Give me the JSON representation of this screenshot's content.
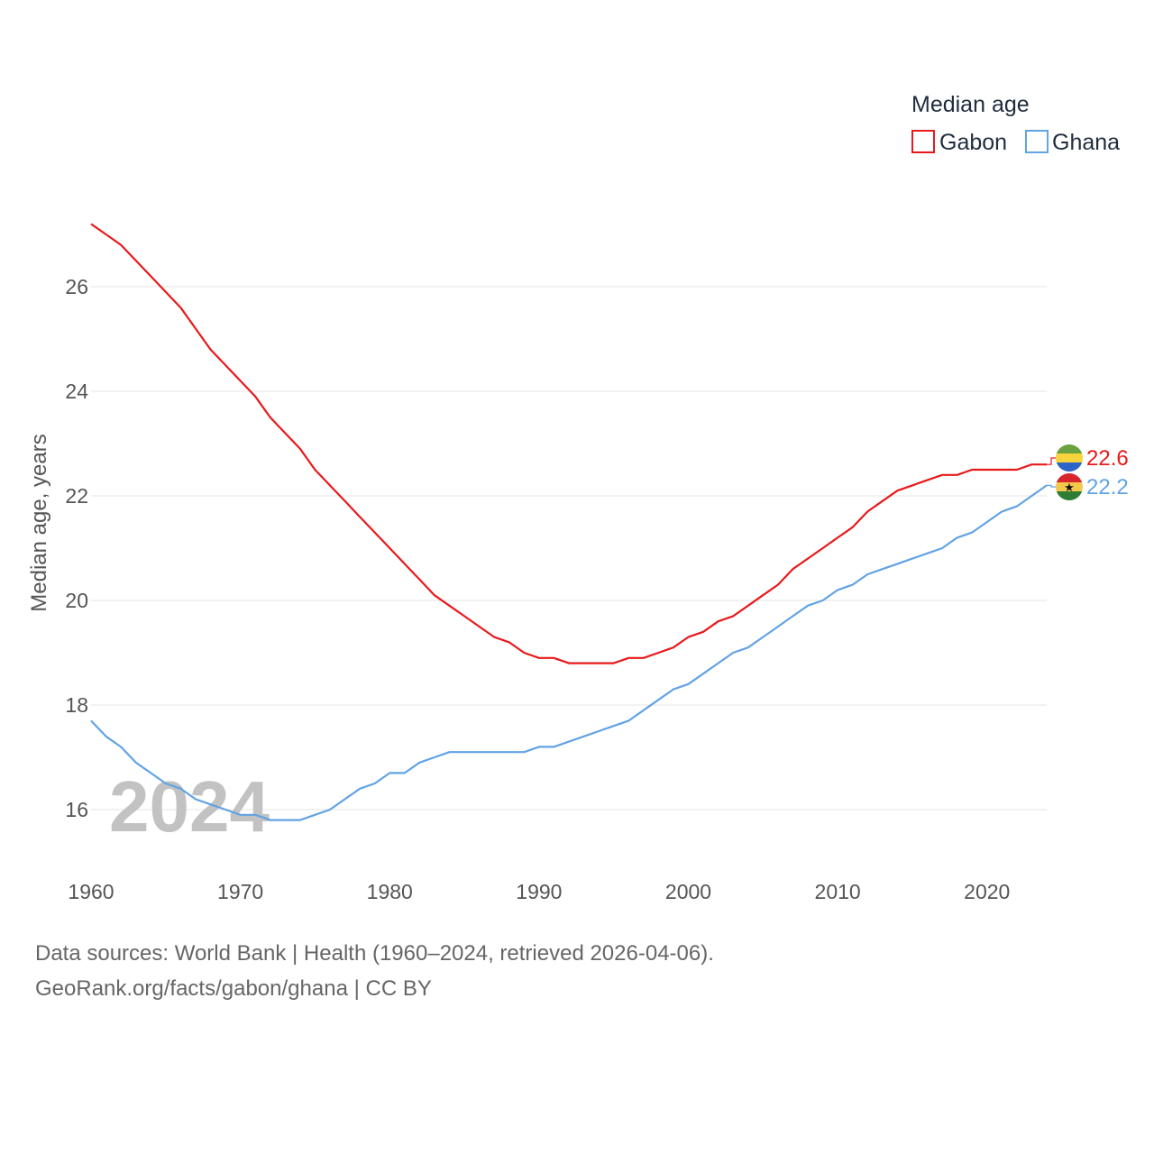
{
  "chart_data": {
    "type": "line",
    "title": "",
    "xlabel": "",
    "ylabel": "Median age, years",
    "xlim": [
      1960,
      2024
    ],
    "ylim": [
      15,
      27.5
    ],
    "x_ticks": [
      1960,
      1970,
      1980,
      1990,
      2000,
      2010,
      2020
    ],
    "y_ticks": [
      16,
      18,
      20,
      22,
      24,
      26
    ],
    "grid": "horizontal",
    "legend": {
      "title": "Median age",
      "position": "top-right"
    },
    "current_year_label": "2024",
    "x": [
      1960,
      1961,
      1962,
      1963,
      1964,
      1965,
      1966,
      1967,
      1968,
      1969,
      1970,
      1971,
      1972,
      1973,
      1974,
      1975,
      1976,
      1977,
      1978,
      1979,
      1980,
      1981,
      1982,
      1983,
      1984,
      1985,
      1986,
      1987,
      1988,
      1989,
      1990,
      1991,
      1992,
      1993,
      1994,
      1995,
      1996,
      1997,
      1998,
      1999,
      2000,
      2001,
      2002,
      2003,
      2004,
      2005,
      2006,
      2007,
      2008,
      2009,
      2010,
      2011,
      2012,
      2013,
      2014,
      2015,
      2016,
      2017,
      2018,
      2019,
      2020,
      2021,
      2022,
      2023,
      2024
    ],
    "series": [
      {
        "name": "Gabon",
        "color": "#e8191b",
        "flag": "gabon-flag-icon",
        "end_label": "22.6",
        "values": [
          27.2,
          27.0,
          26.8,
          26.5,
          26.2,
          25.9,
          25.6,
          25.2,
          24.8,
          24.5,
          24.2,
          23.9,
          23.5,
          23.2,
          22.9,
          22.5,
          22.2,
          21.9,
          21.6,
          21.3,
          21.0,
          20.7,
          20.4,
          20.1,
          19.9,
          19.7,
          19.5,
          19.3,
          19.2,
          19.0,
          18.9,
          18.9,
          18.8,
          18.8,
          18.8,
          18.8,
          18.9,
          18.9,
          19.0,
          19.1,
          19.3,
          19.4,
          19.6,
          19.7,
          19.9,
          20.1,
          20.3,
          20.6,
          20.8,
          21.0,
          21.2,
          21.4,
          21.7,
          21.9,
          22.1,
          22.2,
          22.3,
          22.4,
          22.4,
          22.5,
          22.5,
          22.5,
          22.5,
          22.6,
          22.6
        ]
      },
      {
        "name": "Ghana",
        "color": "#62a3e4",
        "flag": "ghana-flag-icon",
        "end_label": "22.2",
        "values": [
          17.7,
          17.4,
          17.2,
          16.9,
          16.7,
          16.5,
          16.4,
          16.2,
          16.1,
          16.0,
          15.9,
          15.9,
          15.8,
          15.8,
          15.8,
          15.9,
          16.0,
          16.2,
          16.4,
          16.5,
          16.7,
          16.7,
          16.9,
          17.0,
          17.1,
          17.1,
          17.1,
          17.1,
          17.1,
          17.1,
          17.2,
          17.2,
          17.3,
          17.4,
          17.5,
          17.6,
          17.7,
          17.9,
          18.1,
          18.3,
          18.4,
          18.6,
          18.8,
          19.0,
          19.1,
          19.3,
          19.5,
          19.7,
          19.9,
          20.0,
          20.2,
          20.3,
          20.5,
          20.6,
          20.7,
          20.8,
          20.9,
          21.0,
          21.2,
          21.3,
          21.5,
          21.7,
          21.8,
          22.0,
          22.2
        ]
      }
    ]
  },
  "source": {
    "line1": "Data sources: World Bank | Health (1960–2024, retrieved 2026-04-06).",
    "line2": "GeoRank.org/facts/gabon/ghana | CC BY"
  }
}
